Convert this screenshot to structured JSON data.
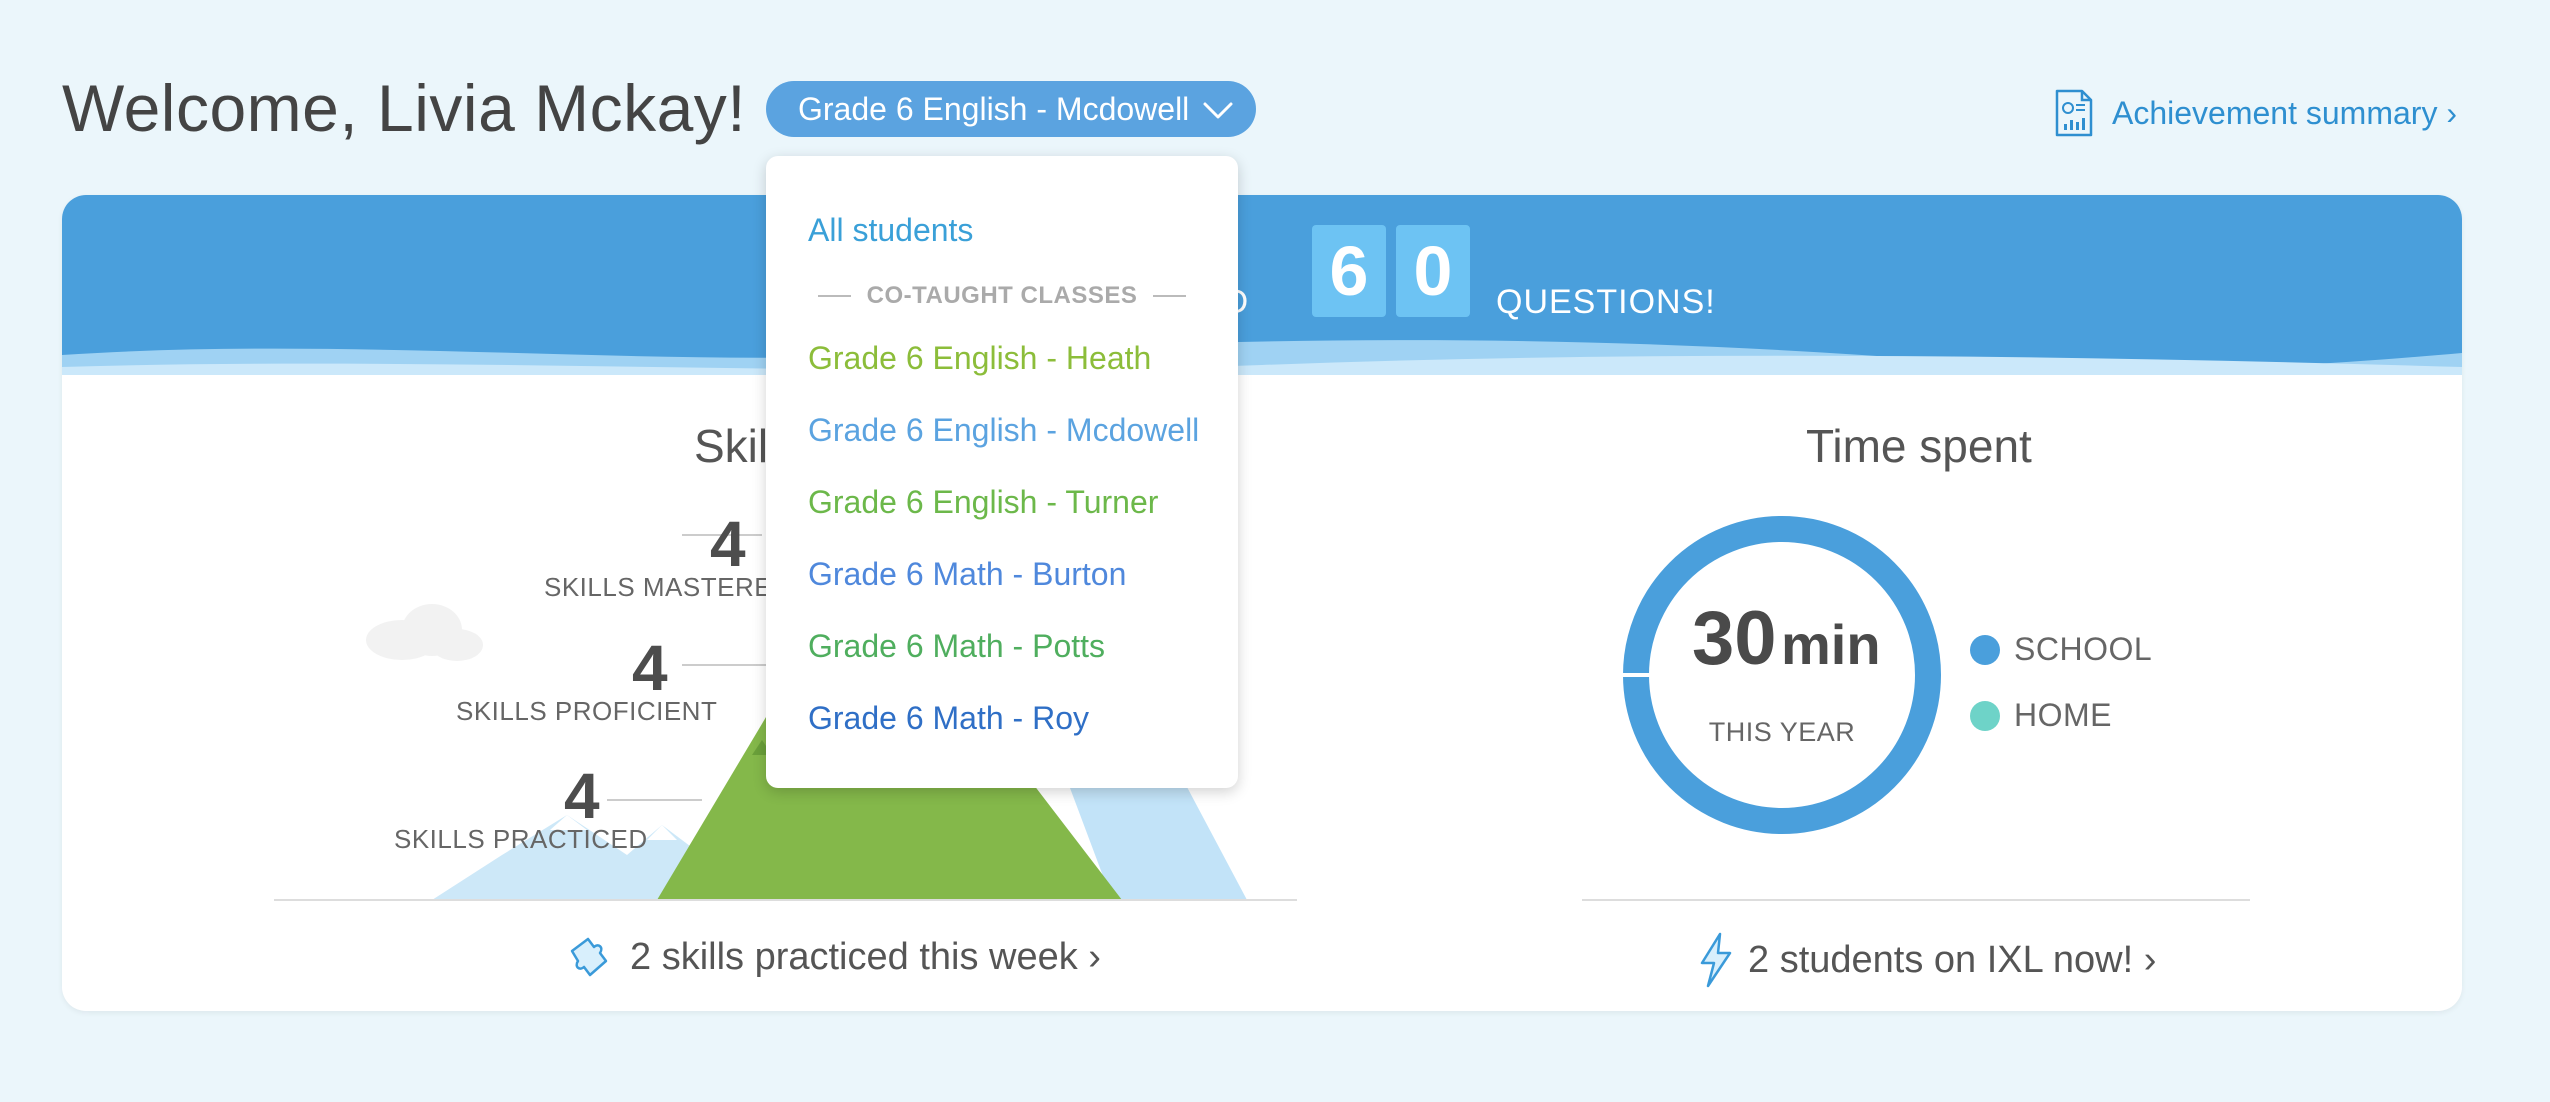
{
  "header": {
    "welcome": "Welcome, Livia Mckay!",
    "class_selector": "Grade 6 English - Mcdowell",
    "achievement_link": "Achievement summary ›"
  },
  "banner": {
    "text_left": "ED",
    "digits": [
      "6",
      "0"
    ],
    "text_right": "QUESTIONS!"
  },
  "skills": {
    "title": "Skill",
    "stats": [
      {
        "value": "4",
        "label": "SKILLS MASTERED"
      },
      {
        "value": "4",
        "label": "SKILLS PROFICIENT"
      },
      {
        "value": "4",
        "label": "SKILLS PRACTICED"
      }
    ],
    "footer": "2 skills practiced this week ›"
  },
  "time_spent": {
    "title": "Time spent",
    "value": "30",
    "unit": "min",
    "period": "THIS YEAR",
    "legend": [
      {
        "label": "SCHOOL",
        "color": "#4a9fdc"
      },
      {
        "label": "HOME",
        "color": "#6ed3c8"
      }
    ],
    "footer": "2 students on IXL now! ›"
  },
  "dropdown": {
    "all_students": "All students",
    "section_label": "CO-TAUGHT CLASSES",
    "classes": [
      {
        "label": "Grade 6 English - Heath",
        "color": "#8cbd3a"
      },
      {
        "label": "Grade 6 English - Mcdowell",
        "color": "#5ba3e0"
      },
      {
        "label": "Grade 6 English - Turner",
        "color": "#6cb84a"
      },
      {
        "label": "Grade 6 Math - Burton",
        "color": "#4f88dc"
      },
      {
        "label": "Grade 6 Math - Potts",
        "color": "#4fae5e"
      },
      {
        "label": "Grade 6 Math - Roy",
        "color": "#2f6fc6"
      }
    ]
  },
  "colors": {
    "background": "#ebf6fb",
    "banner": "#4a9fdc",
    "accent": "#2e8fd0"
  }
}
